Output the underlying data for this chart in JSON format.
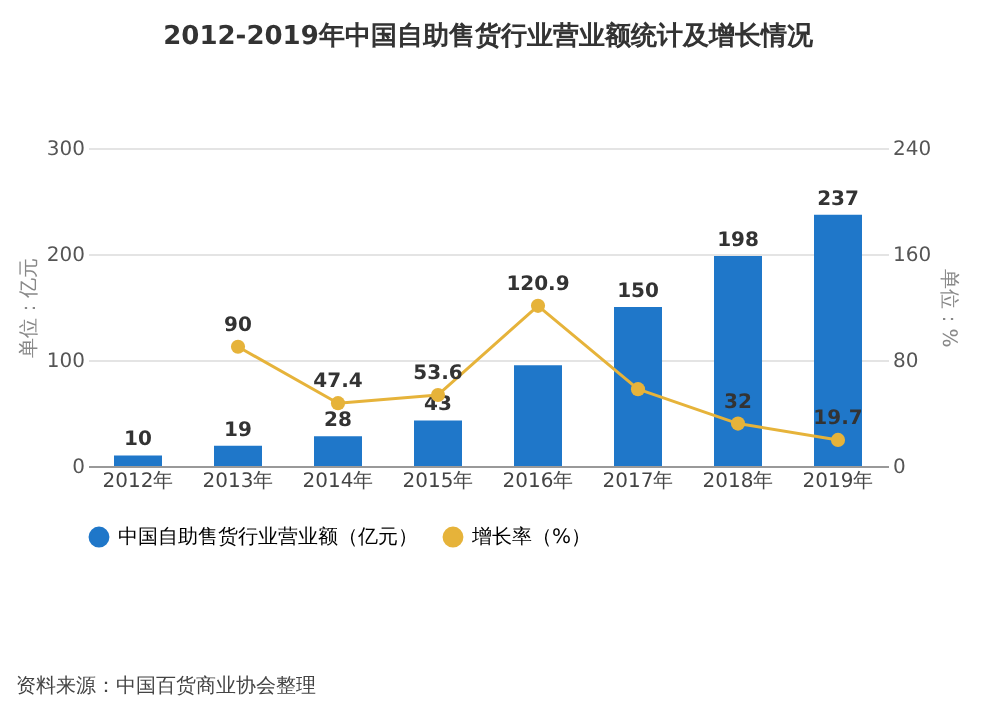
{
  "chart_data": {
    "type": "bar",
    "title": "2012-2019年中国自助售货行业营业额统计及增长情况",
    "categories": [
      "2012年",
      "2013年",
      "2014年",
      "2015年",
      "2016年",
      "2017年",
      "2018年",
      "2019年"
    ],
    "series": [
      {
        "name": "中国自助售货行业营业额（亿元）",
        "color": "#1f77c9",
        "values": [
          10,
          19,
          28,
          43,
          95,
          150,
          198,
          237
        ],
        "value_labels": [
          "10",
          "19",
          "28",
          "43",
          null,
          "150",
          "198",
          "237"
        ]
      },
      {
        "name": "增长率（%）",
        "type": "line",
        "axis": "y2",
        "color": "#e6b33a",
        "values": [
          null,
          90,
          47.4,
          53.6,
          120.9,
          58,
          32,
          19.7
        ],
        "value_labels": [
          null,
          "90",
          "47.4",
          "53.6",
          "120.9",
          null,
          "32",
          "19.7"
        ]
      }
    ],
    "ylabel": "单位：亿元",
    "y2label": "单位：%",
    "ylim": [
      0,
      300
    ],
    "yticks": [
      0,
      100,
      200,
      300
    ],
    "y2lim": [
      0,
      240
    ],
    "y2ticks": [
      0,
      80,
      160,
      240
    ],
    "grid": "y",
    "legend": "bottom",
    "marker": "circle",
    "annotations": [
      "资料来源：中国百货商业协会整理"
    ]
  }
}
